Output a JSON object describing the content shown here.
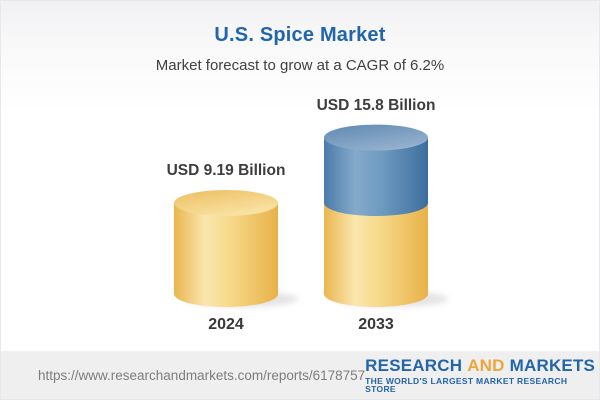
{
  "header": {
    "title": "U.S. Spice Market",
    "subtitle": "Market forecast to grow at a CAGR of 6.2%"
  },
  "chart_data": {
    "type": "bar",
    "variant": "3d-cylinder-stacked",
    "title": "U.S. Spice Market",
    "subtitle": "Market forecast to grow at a CAGR of 6.2%",
    "categories": [
      "2024",
      "2033"
    ],
    "values": [
      9.19,
      15.8
    ],
    "value_labels": [
      "USD 9.19 Billion",
      "USD 15.8 Billion"
    ],
    "series": [
      {
        "name": "base-level",
        "color": "#F0C45F"
      },
      {
        "name": "growth-above-2024-level",
        "color": "#4C7EAC"
      }
    ],
    "ylabel": "",
    "xlabel": "",
    "grid": false,
    "legend": false
  },
  "footer": {
    "url": "https://www.researchandmarkets.com/reports/6178757",
    "logo": {
      "part1": "RESEARCH",
      "part2": "AND",
      "part3": "MARKETS",
      "tagline": "THE WORLD'S LARGEST MARKET RESEARCH STORE"
    },
    "colors": {
      "logo_blue": "#2465A8",
      "logo_gold": "#EEA63C",
      "title_blue": "#2166AC"
    }
  }
}
